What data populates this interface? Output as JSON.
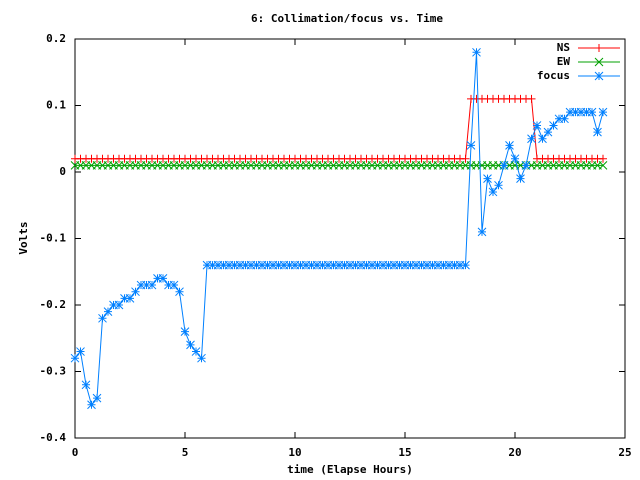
{
  "chart_data": {
    "type": "line",
    "title": "6: Collimation/focus vs. Time",
    "xlabel": "time (Elapse Hours)",
    "ylabel": "Volts",
    "xlim": [
      0,
      25
    ],
    "xticks": [
      0,
      5,
      10,
      15,
      20,
      25
    ],
    "ylim": [
      -0.4,
      0.2
    ],
    "yticks": [
      -0.4,
      -0.3,
      -0.2,
      -0.1,
      0,
      0.1,
      0.2
    ],
    "legend": "top-right",
    "x": [
      0,
      0.25,
      0.5,
      0.75,
      1,
      1.25,
      1.5,
      1.75,
      2,
      2.25,
      2.5,
      2.75,
      3,
      3.25,
      3.5,
      3.75,
      4,
      4.25,
      4.5,
      4.75,
      5,
      5.25,
      5.5,
      5.75,
      6,
      6.25,
      6.5,
      6.75,
      7,
      7.25,
      7.5,
      7.75,
      8,
      8.25,
      8.5,
      8.75,
      9,
      9.25,
      9.5,
      9.75,
      10,
      10.25,
      10.5,
      10.75,
      11,
      11.25,
      11.5,
      11.75,
      12,
      12.25,
      12.5,
      12.75,
      13,
      13.25,
      13.5,
      13.75,
      14,
      14.25,
      14.5,
      14.75,
      15,
      15.25,
      15.5,
      15.75,
      16,
      16.25,
      16.5,
      16.75,
      17,
      17.25,
      17.5,
      17.75,
      18,
      18.25,
      18.5,
      18.75,
      19,
      19.25,
      19.5,
      19.75,
      20,
      20.25,
      20.5,
      20.75,
      21,
      21.25,
      21.5,
      21.75,
      22,
      22.25,
      22.5,
      22.75,
      23,
      23.25,
      23.5,
      23.75,
      24
    ],
    "series": [
      {
        "name": "NS",
        "color": "#ff0000",
        "marker": "plus",
        "values": [
          0.02,
          0.02,
          0.02,
          0.02,
          0.02,
          0.02,
          0.02,
          0.02,
          0.02,
          0.02,
          0.02,
          0.02,
          0.02,
          0.02,
          0.02,
          0.02,
          0.02,
          0.02,
          0.02,
          0.02,
          0.02,
          0.02,
          0.02,
          0.02,
          0.02,
          0.02,
          0.02,
          0.02,
          0.02,
          0.02,
          0.02,
          0.02,
          0.02,
          0.02,
          0.02,
          0.02,
          0.02,
          0.02,
          0.02,
          0.02,
          0.02,
          0.02,
          0.02,
          0.02,
          0.02,
          0.02,
          0.02,
          0.02,
          0.02,
          0.02,
          0.02,
          0.02,
          0.02,
          0.02,
          0.02,
          0.02,
          0.02,
          0.02,
          0.02,
          0.02,
          0.02,
          0.02,
          0.02,
          0.02,
          0.02,
          0.02,
          0.02,
          0.02,
          0.02,
          0.02,
          0.02,
          0.02,
          0.11,
          0.11,
          0.11,
          0.11,
          0.11,
          0.11,
          0.11,
          0.11,
          0.11,
          0.11,
          0.11,
          0.11,
          0.02,
          0.02,
          0.02,
          0.02,
          0.02,
          0.02,
          0.02,
          0.02,
          0.02,
          0.02,
          0.02,
          0.02,
          0.02
        ]
      },
      {
        "name": "EW",
        "color": "#00a000",
        "marker": "cross",
        "values": [
          0.01,
          0.01,
          0.01,
          0.01,
          0.01,
          0.01,
          0.01,
          0.01,
          0.01,
          0.01,
          0.01,
          0.01,
          0.01,
          0.01,
          0.01,
          0.01,
          0.01,
          0.01,
          0.01,
          0.01,
          0.01,
          0.01,
          0.01,
          0.01,
          0.01,
          0.01,
          0.01,
          0.01,
          0.01,
          0.01,
          0.01,
          0.01,
          0.01,
          0.01,
          0.01,
          0.01,
          0.01,
          0.01,
          0.01,
          0.01,
          0.01,
          0.01,
          0.01,
          0.01,
          0.01,
          0.01,
          0.01,
          0.01,
          0.01,
          0.01,
          0.01,
          0.01,
          0.01,
          0.01,
          0.01,
          0.01,
          0.01,
          0.01,
          0.01,
          0.01,
          0.01,
          0.01,
          0.01,
          0.01,
          0.01,
          0.01,
          0.01,
          0.01,
          0.01,
          0.01,
          0.01,
          0.01,
          0.01,
          0.01,
          0.01,
          0.01,
          0.01,
          0.01,
          0.01,
          0.01,
          0.01,
          0.01,
          0.01,
          0.01,
          0.01,
          0.01,
          0.01,
          0.01,
          0.01,
          0.01,
          0.01,
          0.01,
          0.01,
          0.01,
          0.01,
          0.01,
          0.01
        ]
      },
      {
        "name": "focus",
        "color": "#0080ff",
        "marker": "star",
        "values": [
          -0.28,
          -0.27,
          -0.32,
          -0.35,
          -0.34,
          -0.22,
          -0.21,
          -0.2,
          -0.2,
          -0.19,
          -0.19,
          -0.18,
          -0.17,
          -0.17,
          -0.17,
          -0.16,
          -0.16,
          -0.17,
          -0.17,
          -0.18,
          -0.24,
          -0.26,
          -0.27,
          -0.28,
          -0.14,
          -0.14,
          -0.14,
          -0.14,
          -0.14,
          -0.14,
          -0.14,
          -0.14,
          -0.14,
          -0.14,
          -0.14,
          -0.14,
          -0.14,
          -0.14,
          -0.14,
          -0.14,
          -0.14,
          -0.14,
          -0.14,
          -0.14,
          -0.14,
          -0.14,
          -0.14,
          -0.14,
          -0.14,
          -0.14,
          -0.14,
          -0.14,
          -0.14,
          -0.14,
          -0.14,
          -0.14,
          -0.14,
          -0.14,
          -0.14,
          -0.14,
          -0.14,
          -0.14,
          -0.14,
          -0.14,
          -0.14,
          -0.14,
          -0.14,
          -0.14,
          -0.14,
          -0.14,
          -0.14,
          -0.14,
          0.04,
          0.18,
          -0.09,
          -0.01,
          -0.03,
          -0.02,
          0.01,
          0.04,
          0.02,
          -0.01,
          0.01,
          0.05,
          0.07,
          0.05,
          0.06,
          0.07,
          0.08,
          0.08,
          0.09,
          0.09,
          0.09,
          0.09,
          0.09,
          0.06,
          0.09
        ]
      }
    ]
  }
}
